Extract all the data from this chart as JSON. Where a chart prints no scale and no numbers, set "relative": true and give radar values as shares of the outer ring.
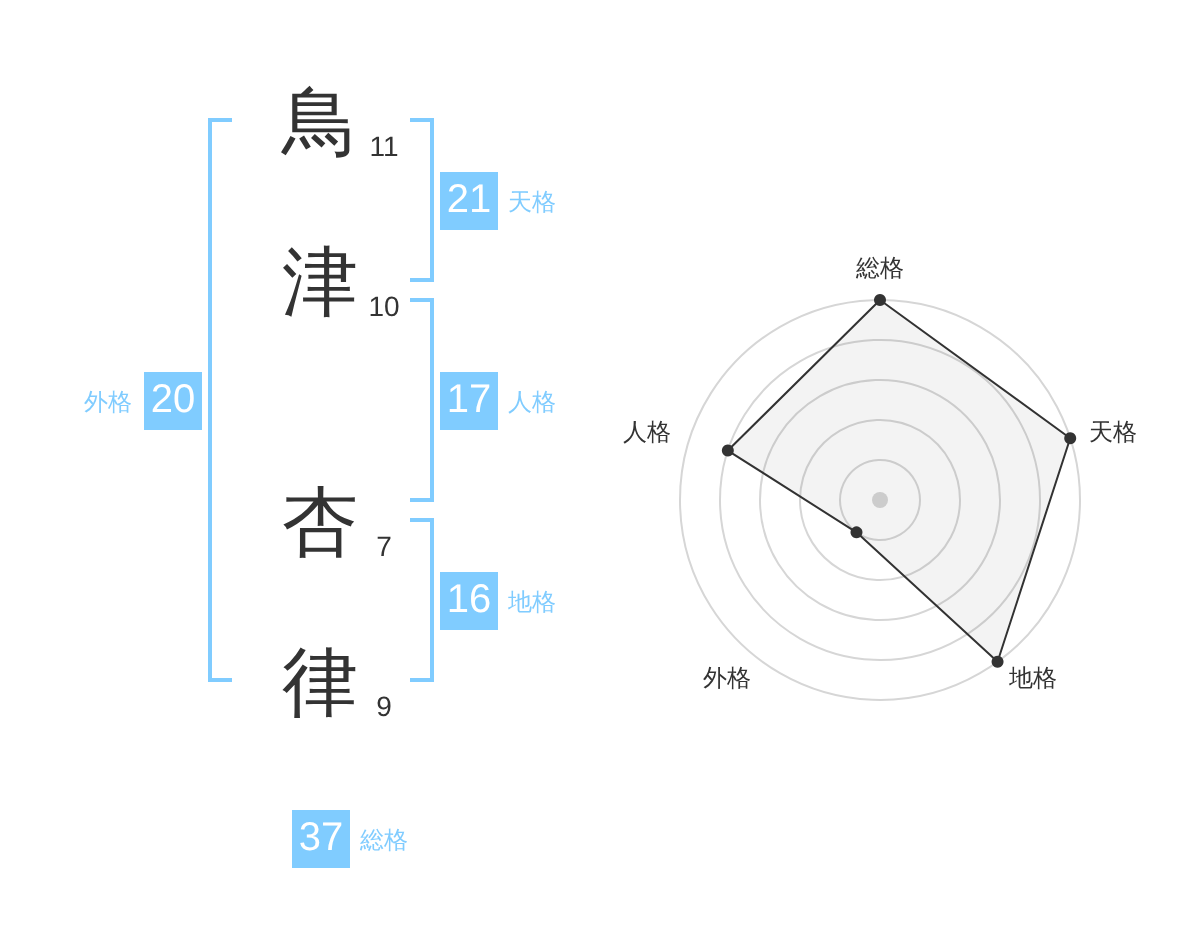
{
  "chart_data": [
    {
      "type": "other",
      "categories": [
        "鳥",
        "津",
        "杏",
        "律"
      ],
      "values": [
        11,
        10,
        7,
        9
      ],
      "data_labels": true
    },
    {
      "type": "other",
      "categories": [
        "天格",
        "人格",
        "地格",
        "外格",
        "総格"
      ],
      "values": [
        21,
        17,
        16,
        20,
        37
      ],
      "data_labels": true,
      "color": "#80ccff"
    },
    {
      "type": "radar",
      "categories": [
        "総格",
        "天格",
        "地格",
        "外格",
        "人格"
      ],
      "relative": true,
      "series": [
        {
          "values": [
            1,
            1,
            1,
            0.2,
            0.8
          ],
          "color": "#333333"
        }
      ],
      "grid": true,
      "marker": "circle"
    }
  ]
}
